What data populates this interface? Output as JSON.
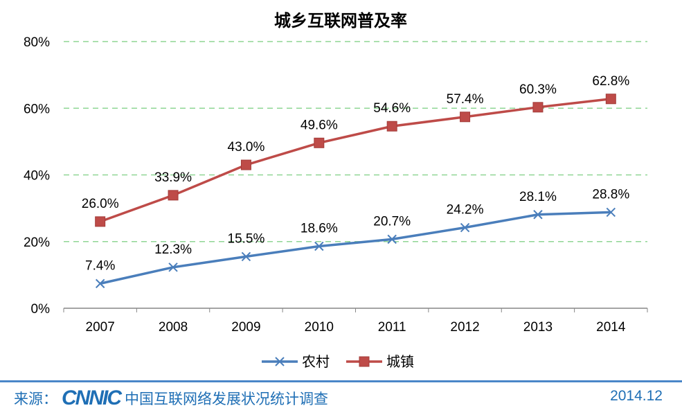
{
  "chart_data": {
    "type": "line",
    "title": "城乡互联网普及率",
    "categories": [
      "2007",
      "2008",
      "2009",
      "2010",
      "2011",
      "2012",
      "2013",
      "2014"
    ],
    "series": [
      {
        "name": "农村",
        "color": "#4a7ebb",
        "marker": "x",
        "values": [
          7.4,
          12.3,
          15.5,
          18.6,
          20.7,
          24.2,
          28.1,
          28.8
        ],
        "labels": [
          "7.4%",
          "12.3%",
          "15.5%",
          "18.6%",
          "20.7%",
          "24.2%",
          "28.1%",
          "28.8%"
        ]
      },
      {
        "name": "城镇",
        "color": "#be4b48",
        "marker": "square",
        "values": [
          26.0,
          33.9,
          43.0,
          49.6,
          54.6,
          57.4,
          60.3,
          62.8
        ],
        "labels": [
          "26.0%",
          "33.9%",
          "43.0%",
          "49.6%",
          "54.6%",
          "57.4%",
          "60.3%",
          "62.8%"
        ]
      }
    ],
    "ylim": [
      0,
      80
    ],
    "yticks": [
      0,
      20,
      40,
      60,
      80
    ],
    "ytick_labels": [
      "0%",
      "20%",
      "40%",
      "60%",
      "80%"
    ],
    "grid": true,
    "grid_color": "#8fd694",
    "legend_position": "bottom"
  },
  "footer": {
    "source_label": "来源：",
    "logo_text": "CNNIC",
    "source_text": "中国互联网络发展状况统计调查",
    "date": "2014.12"
  }
}
